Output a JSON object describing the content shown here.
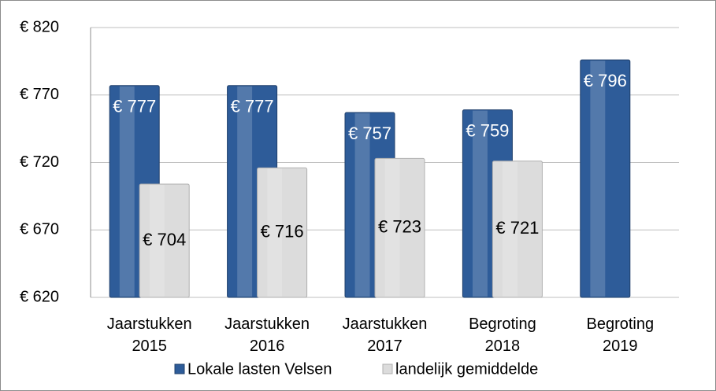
{
  "chart_data": {
    "type": "bar",
    "categories": [
      "Jaarstukken 2015",
      "Jaarstukken 2016",
      "Jaarstukken 2017",
      "Begroting 2018",
      "Begroting 2019"
    ],
    "series": [
      {
        "name": "Lokale lasten Velsen",
        "color": "#2e5c99",
        "values": [
          777,
          777,
          757,
          759,
          796
        ],
        "value_labels": [
          "€ 777",
          "€ 777",
          "€ 757",
          "€ 759",
          "€ 796"
        ]
      },
      {
        "name": "landelijk gemiddelde",
        "color": "#dcdcdc",
        "values": [
          704,
          716,
          723,
          721,
          null
        ],
        "value_labels": [
          "€ 704",
          "€ 716",
          "€ 723",
          "€ 721",
          null
        ]
      }
    ],
    "ylim": [
      620,
      820
    ],
    "yticks": [
      {
        "value": 620,
        "label": "€ 620"
      },
      {
        "value": 670,
        "label": "€ 670"
      },
      {
        "value": 720,
        "label": "€ 720"
      },
      {
        "value": 770,
        "label": "€ 770"
      },
      {
        "value": 820,
        "label": "€ 820"
      }
    ],
    "grid": true,
    "legend": "bottom"
  }
}
